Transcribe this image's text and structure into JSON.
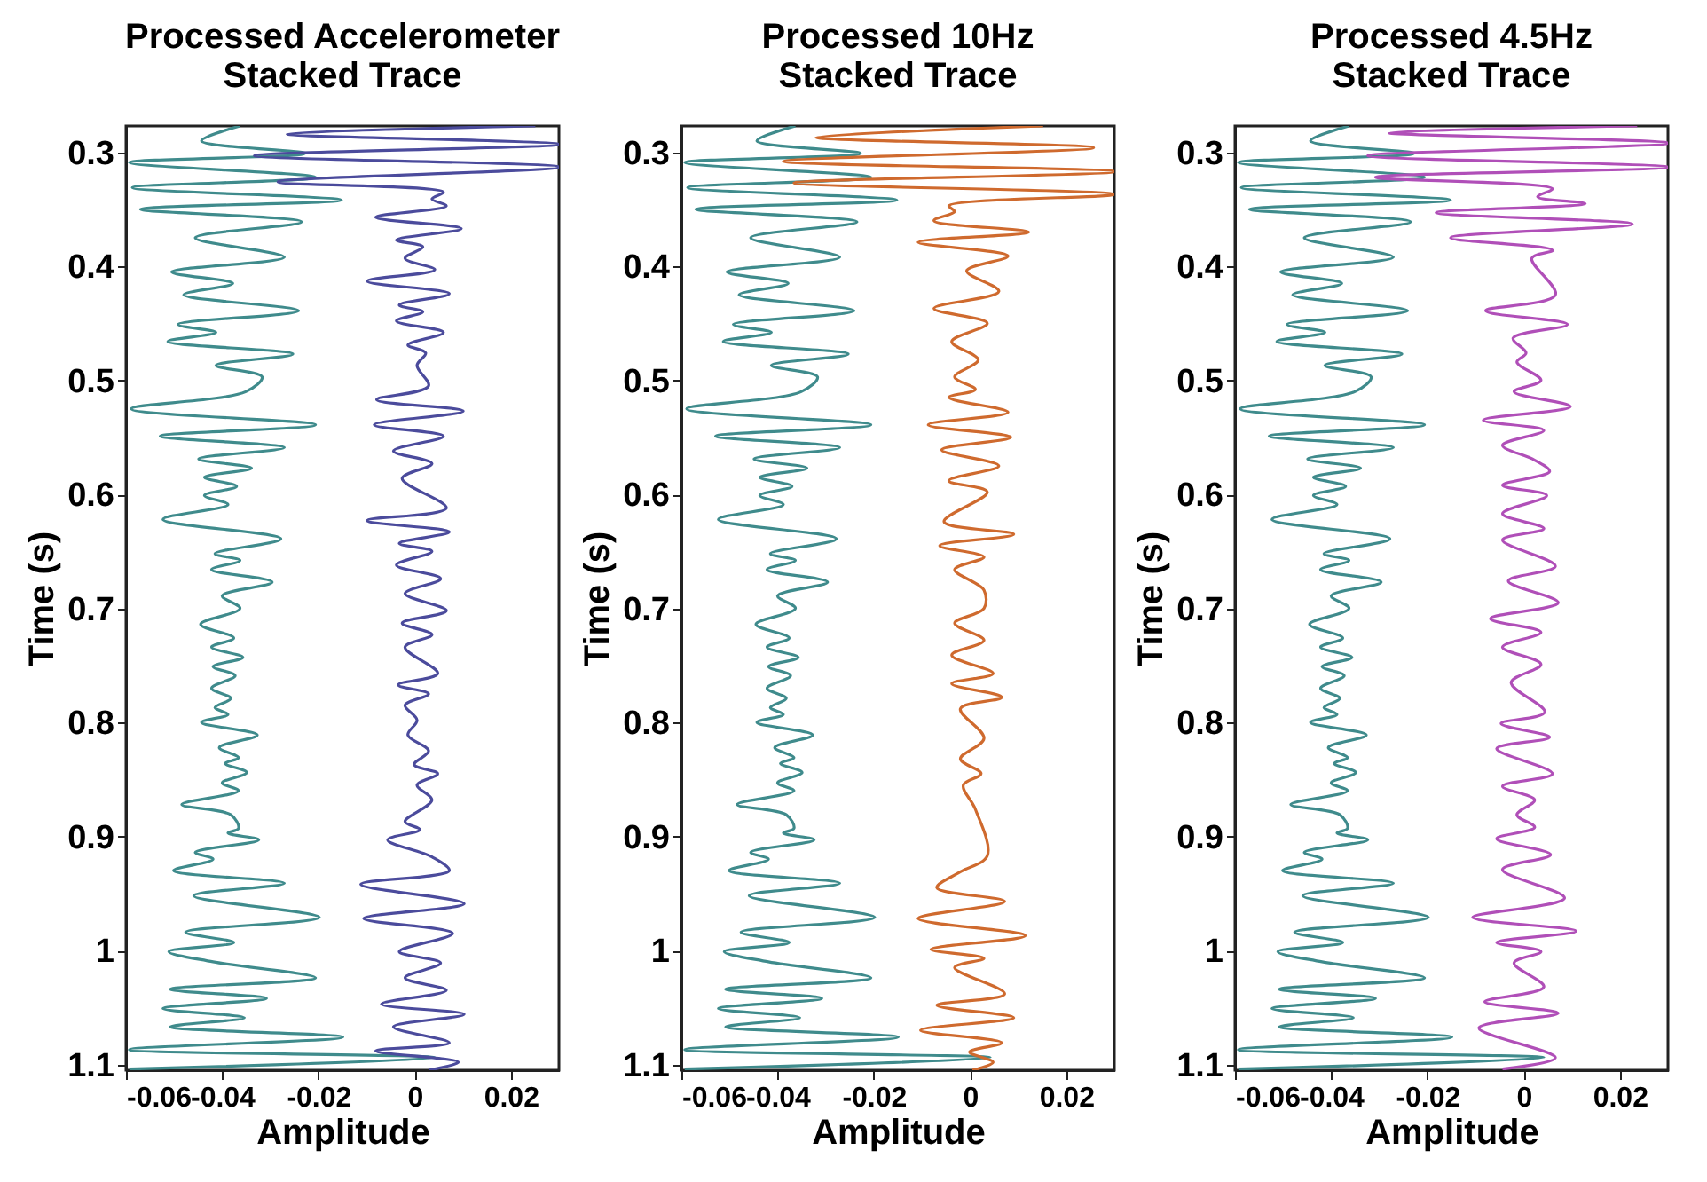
{
  "chart_data": [
    {
      "type": "line",
      "title": "Processed Accelerometer\nStacked Trace",
      "xlabel": "Amplitude",
      "ylabel": "Time (s)",
      "xlim": [
        -0.06,
        0.03
      ],
      "xticks": [
        -0.06,
        -0.04,
        -0.02,
        0,
        0.02
      ],
      "ylim": [
        1.105,
        0.277
      ],
      "yticks": [
        0.3,
        0.4,
        0.5,
        0.6,
        0.7,
        0.8,
        0.9,
        1,
        1.1
      ],
      "series": [
        {
          "color": "#3f8b8c",
          "x": [
            -0.0363,
            -0.0443,
            -0.0228,
            -0.0593,
            -0.0206,
            -0.0587,
            -0.0152,
            -0.057,
            -0.0235,
            -0.0456,
            -0.0271,
            -0.0505,
            -0.0378,
            -0.048,
            -0.0241,
            -0.0492,
            -0.0413,
            -0.0513,
            -0.0253,
            -0.0413,
            -0.0317,
            -0.0351,
            -0.0589,
            -0.0206,
            -0.0529,
            -0.0271,
            -0.0449,
            -0.0339,
            -0.0437,
            -0.037,
            -0.0437,
            -0.0388,
            -0.0523,
            -0.0278,
            -0.0415,
            -0.0363,
            -0.0422,
            -0.0296,
            -0.04,
            -0.0363,
            -0.0445,
            -0.0376,
            -0.0422,
            -0.0357,
            -0.0419,
            -0.0373,
            -0.0422,
            -0.0382,
            -0.0415,
            -0.0388,
            -0.0443,
            -0.0327,
            -0.0406,
            -0.0366,
            -0.0394,
            -0.0349,
            -0.04,
            -0.0366,
            -0.0484,
            -0.0382,
            -0.0366,
            -0.0388,
            -0.0324,
            -0.0456,
            -0.0419,
            -0.0501,
            -0.0271,
            -0.0459,
            -0.0198,
            -0.0476,
            -0.0376,
            -0.0511,
            -0.0419,
            -0.0206,
            -0.0508,
            -0.0308,
            -0.0523,
            -0.0354,
            -0.0508,
            -0.0149,
            -0.0593,
            0.0042,
            -0.0593
          ],
          "values": [
            0.277,
            0.29,
            0.301,
            0.309,
            0.322,
            0.331,
            0.342,
            0.35,
            0.361,
            0.375,
            0.392,
            0.405,
            0.415,
            0.425,
            0.439,
            0.451,
            0.458,
            0.466,
            0.477,
            0.487,
            0.497,
            0.51,
            0.525,
            0.539,
            0.549,
            0.559,
            0.569,
            0.577,
            0.585,
            0.593,
            0.601,
            0.609,
            0.622,
            0.639,
            0.652,
            0.658,
            0.666,
            0.677,
            0.689,
            0.7,
            0.714,
            0.726,
            0.734,
            0.743,
            0.751,
            0.759,
            0.77,
            0.779,
            0.787,
            0.793,
            0.8,
            0.811,
            0.822,
            0.831,
            0.836,
            0.844,
            0.853,
            0.86,
            0.872,
            0.881,
            0.893,
            0.897,
            0.903,
            0.914,
            0.92,
            0.93,
            0.941,
            0.952,
            0.971,
            0.984,
            0.993,
            1.001,
            1.01,
            1.024,
            1.034,
            1.042,
            1.051,
            1.059,
            1.067,
            1.076,
            1.087,
            1.094,
            1.104
          ]
        },
        {
          "color": "#4b4b9c",
          "x": [
            0.0251,
            -0.0265,
            0.03,
            -0.0333,
            0.03,
            -0.0284,
            0.006,
            0.0036,
            0.0066,
            -0.0081,
            0.0097,
            -0.0038,
            0.0017,
            -0.002,
            0.0042,
            -0.0099,
            0.0072,
            -0.0032,
            0.0017,
            -0.0038,
            0.006,
            -0.0014,
            0.0023,
            0.0005,
            0.0029,
            -0.0079,
            0.0101,
            -0.0084,
            0.006,
            -0.0044,
            0.0036,
            -0.0026,
            0.0066,
            -0.0099,
            0.0072,
            -0.0032,
            0.0036,
            -0.0038,
            0.0054,
            -0.002,
            0.0066,
            -0.0026,
            0.0036,
            -0.002,
            0.0048,
            -0.0034,
            0.0029,
            -0.002,
            0.0005,
            -0.0014,
            0.0029,
            -0.0001,
            0.0048,
            0.0005,
            0.0036,
            -0.002,
            0.0011,
            -0.0056,
            0.0036,
            0.0072,
            -0.0112,
            0.0103,
            -0.0106,
            0.0079,
            -0.0032,
            0.0054,
            -0.002,
            0.0066,
            -0.0069,
            0.0103,
            -0.0044,
            0.0072,
            -0.0081,
            0.0091,
            0.0029
          ],
          "values": [
            0.277,
            0.284,
            0.293,
            0.303,
            0.313,
            0.326,
            0.335,
            0.341,
            0.347,
            0.357,
            0.367,
            0.377,
            0.383,
            0.393,
            0.403,
            0.413,
            0.424,
            0.434,
            0.44,
            0.448,
            0.458,
            0.469,
            0.476,
            0.487,
            0.505,
            0.517,
            0.527,
            0.539,
            0.549,
            0.562,
            0.573,
            0.586,
            0.612,
            0.623,
            0.633,
            0.643,
            0.65,
            0.662,
            0.674,
            0.687,
            0.702,
            0.713,
            0.723,
            0.734,
            0.757,
            0.767,
            0.775,
            0.785,
            0.798,
            0.811,
            0.825,
            0.837,
            0.845,
            0.855,
            0.868,
            0.887,
            0.894,
            0.903,
            0.918,
            0.93,
            0.942,
            0.959,
            0.972,
            0.985,
            1.001,
            1.011,
            1.024,
            1.035,
            1.047,
            1.056,
            1.067,
            1.081,
            1.088,
            1.098,
            1.105
          ]
        }
      ]
    },
    {
      "type": "line",
      "title": "Processed 10Hz\nStacked Trace",
      "xlabel": "Amplitude",
      "ylabel": "Time (s)",
      "xlim": [
        -0.06,
        0.03
      ],
      "xticks": [
        -0.06,
        -0.04,
        -0.02,
        0,
        0.02
      ],
      "ylim": [
        1.105,
        0.277
      ],
      "yticks": [
        0.3,
        0.4,
        0.5,
        0.6,
        0.7,
        0.8,
        0.9,
        1,
        1.1
      ],
      "series": [
        {
          "color": "#3f8b8c",
          "x": [
            -0.0363,
            -0.0443,
            -0.0228,
            -0.0593,
            -0.0206,
            -0.0587,
            -0.0152,
            -0.057,
            -0.0235,
            -0.0456,
            -0.0271,
            -0.0505,
            -0.0378,
            -0.048,
            -0.0241,
            -0.0492,
            -0.0413,
            -0.0513,
            -0.0253,
            -0.0413,
            -0.0317,
            -0.0351,
            -0.0589,
            -0.0206,
            -0.0529,
            -0.0271,
            -0.0449,
            -0.0339,
            -0.0437,
            -0.037,
            -0.0437,
            -0.0388,
            -0.0523,
            -0.0278,
            -0.0415,
            -0.0363,
            -0.0422,
            -0.0296,
            -0.04,
            -0.0363,
            -0.0445,
            -0.0376,
            -0.0422,
            -0.0357,
            -0.0419,
            -0.0373,
            -0.0422,
            -0.0382,
            -0.0415,
            -0.0388,
            -0.0443,
            -0.0327,
            -0.0406,
            -0.0366,
            -0.0394,
            -0.0349,
            -0.04,
            -0.0366,
            -0.0484,
            -0.0382,
            -0.0366,
            -0.0388,
            -0.0324,
            -0.0456,
            -0.0419,
            -0.0501,
            -0.0271,
            -0.0459,
            -0.0198,
            -0.0476,
            -0.0376,
            -0.0511,
            -0.0419,
            -0.0206,
            -0.0508,
            -0.0308,
            -0.0523,
            -0.0354,
            -0.0508,
            -0.0149,
            -0.0593,
            0.0042,
            -0.0593
          ],
          "values": [
            0.277,
            0.29,
            0.301,
            0.309,
            0.322,
            0.331,
            0.342,
            0.35,
            0.361,
            0.375,
            0.392,
            0.405,
            0.415,
            0.425,
            0.439,
            0.451,
            0.458,
            0.466,
            0.477,
            0.487,
            0.497,
            0.51,
            0.525,
            0.539,
            0.549,
            0.559,
            0.569,
            0.577,
            0.585,
            0.593,
            0.601,
            0.609,
            0.622,
            0.639,
            0.652,
            0.658,
            0.666,
            0.677,
            0.689,
            0.7,
            0.714,
            0.726,
            0.734,
            0.743,
            0.751,
            0.759,
            0.77,
            0.779,
            0.787,
            0.793,
            0.8,
            0.811,
            0.822,
            0.831,
            0.836,
            0.844,
            0.853,
            0.86,
            0.872,
            0.881,
            0.893,
            0.897,
            0.903,
            0.914,
            0.92,
            0.93,
            0.941,
            0.952,
            0.971,
            0.984,
            0.993,
            1.001,
            1.01,
            1.024,
            1.034,
            1.042,
            1.051,
            1.059,
            1.067,
            1.076,
            1.087,
            1.094,
            1.104
          ]
        },
        {
          "color": "#cf6a2e",
          "x": [
            0.0152,
            -0.032,
            0.0257,
            -0.0388,
            0.03,
            -0.0366,
            0.03,
            -0.0044,
            -0.0032,
            -0.0075,
            0.0122,
            -0.0108,
            0.0079,
            -0.0007,
            0.006,
            -0.0075,
            0.0036,
            -0.0038,
            0.0017,
            -0.0032,
            0.0011,
            -0.0044,
            0.0079,
            -0.0087,
            0.0085,
            -0.0059,
            0.006,
            -0.0044,
            0.0036,
            -0.0054,
            0.0091,
            -0.0063,
            0.0029,
            -0.0032,
            0.0029,
            0.0029,
            -0.0032,
            0.0029,
            -0.0038,
            0.0048,
            -0.0038,
            0.0066,
            -0.002,
            0.0029,
            -0.002,
            0.0023,
            -0.0014,
            0.0011,
            0.0036,
            -0.002,
            -0.0069,
            0.0072,
            -0.0108,
            0.0115,
            -0.0081,
            0.0029,
            -0.0032,
            0.0072,
            -0.0069,
            0.0091,
            -0.0103,
            0.0066,
            -0.0001,
            0.0048,
            0.0005
          ],
          "values": [
            0.277,
            0.287,
            0.296,
            0.308,
            0.317,
            0.327,
            0.337,
            0.347,
            0.352,
            0.36,
            0.37,
            0.379,
            0.391,
            0.404,
            0.422,
            0.437,
            0.45,
            0.466,
            0.482,
            0.497,
            0.508,
            0.515,
            0.528,
            0.539,
            0.55,
            0.561,
            0.575,
            0.588,
            0.598,
            0.624,
            0.635,
            0.645,
            0.655,
            0.666,
            0.684,
            0.7,
            0.713,
            0.728,
            0.741,
            0.757,
            0.766,
            0.778,
            0.788,
            0.814,
            0.832,
            0.845,
            0.855,
            0.876,
            0.917,
            0.931,
            0.945,
            0.957,
            0.972,
            0.987,
            0.999,
            1.007,
            1.015,
            1.038,
            1.048,
            1.059,
            1.07,
            1.081,
            1.089,
            1.098,
            1.105
          ]
        }
      ]
    },
    {
      "type": "line",
      "title": "Processed 4.5Hz\nStacked Trace",
      "xlabel": "Amplitude",
      "ylabel": "Time (s)",
      "xlim": [
        -0.06,
        0.03
      ],
      "xticks": [
        -0.06,
        -0.04,
        -0.02,
        0,
        0.02
      ],
      "ylim": [
        1.105,
        0.277
      ],
      "yticks": [
        0.3,
        0.4,
        0.5,
        0.6,
        0.7,
        0.8,
        0.9,
        1,
        1.1
      ],
      "series": [
        {
          "color": "#3f8b8c",
          "x": [
            -0.0363,
            -0.0443,
            -0.0228,
            -0.0593,
            -0.0206,
            -0.0587,
            -0.0152,
            -0.057,
            -0.0235,
            -0.0456,
            -0.0271,
            -0.0505,
            -0.0378,
            -0.048,
            -0.0241,
            -0.0492,
            -0.0413,
            -0.0513,
            -0.0253,
            -0.0413,
            -0.0317,
            -0.0351,
            -0.0589,
            -0.0206,
            -0.0529,
            -0.0271,
            -0.0449,
            -0.0339,
            -0.0437,
            -0.037,
            -0.0437,
            -0.0388,
            -0.0523,
            -0.0278,
            -0.0415,
            -0.0363,
            -0.0422,
            -0.0296,
            -0.04,
            -0.0363,
            -0.0445,
            -0.0376,
            -0.0422,
            -0.0357,
            -0.0419,
            -0.0373,
            -0.0422,
            -0.0382,
            -0.0415,
            -0.0388,
            -0.0443,
            -0.0327,
            -0.0406,
            -0.0366,
            -0.0394,
            -0.0349,
            -0.04,
            -0.0366,
            -0.0484,
            -0.0382,
            -0.0366,
            -0.0388,
            -0.0324,
            -0.0456,
            -0.0419,
            -0.0501,
            -0.0271,
            -0.0459,
            -0.0198,
            -0.0476,
            -0.0376,
            -0.0511,
            -0.0419,
            -0.0206,
            -0.0508,
            -0.0308,
            -0.0523,
            -0.0354,
            -0.0508,
            -0.0149,
            -0.0593,
            0.0042,
            -0.0593
          ],
          "values": [
            0.277,
            0.29,
            0.301,
            0.309,
            0.322,
            0.331,
            0.342,
            0.35,
            0.361,
            0.375,
            0.392,
            0.405,
            0.415,
            0.425,
            0.439,
            0.451,
            0.458,
            0.466,
            0.477,
            0.487,
            0.497,
            0.51,
            0.525,
            0.539,
            0.549,
            0.559,
            0.569,
            0.577,
            0.585,
            0.593,
            0.601,
            0.609,
            0.622,
            0.639,
            0.652,
            0.658,
            0.666,
            0.677,
            0.689,
            0.7,
            0.714,
            0.726,
            0.734,
            0.743,
            0.751,
            0.759,
            0.77,
            0.779,
            0.787,
            0.793,
            0.8,
            0.811,
            0.822,
            0.831,
            0.836,
            0.844,
            0.853,
            0.86,
            0.872,
            0.881,
            0.893,
            0.897,
            0.903,
            0.914,
            0.92,
            0.93,
            0.941,
            0.952,
            0.971,
            0.984,
            0.993,
            1.001,
            1.01,
            1.024,
            1.034,
            1.042,
            1.051,
            1.059,
            1.067,
            1.076,
            1.087,
            1.094,
            1.104
          ]
        },
        {
          "color": "#b04fb8",
          "x": [
            0.0236,
            -0.028,
            0.03,
            -0.0324,
            0.03,
            -0.0308,
            0.006,
            0.0029,
            0.0128,
            -0.0182,
            0.0226,
            -0.0152,
            0.006,
            0.0017,
            0.0066,
            -0.0079,
            0.0091,
            -0.0022,
            0.0005,
            -0.0014,
            0.0036,
            -0.002,
            0.0097,
            -0.0084,
            0.0042,
            -0.0044,
            0.0023,
            0.0054,
            -0.0044,
            0.0048,
            -0.0044,
            0.0042,
            -0.0044,
            0.0066,
            -0.0032,
            0.0072,
            -0.0069,
            0.0036,
            -0.0044,
            0.0036,
            -0.0026,
            0.0044,
            -0.0047,
            0.0054,
            -0.0056,
            0.006,
            -0.0044,
            0.0023,
            -0.0014,
            0.0023,
            -0.0056,
            0.0056,
            -0.0044,
            0.0085,
            -0.0106,
            0.0109,
            -0.0056,
            0.0036,
            -0.002,
            0.0042,
            -0.0081,
            0.0072,
            -0.0093,
            0.0066,
            -0.0044
          ],
          "values": [
            0.277,
            0.283,
            0.292,
            0.303,
            0.313,
            0.322,
            0.332,
            0.339,
            0.345,
            0.353,
            0.363,
            0.375,
            0.386,
            0.393,
            0.425,
            0.439,
            0.451,
            0.463,
            0.476,
            0.484,
            0.5,
            0.51,
            0.523,
            0.535,
            0.544,
            0.557,
            0.57,
            0.58,
            0.592,
            0.601,
            0.617,
            0.63,
            0.64,
            0.663,
            0.676,
            0.695,
            0.709,
            0.721,
            0.734,
            0.749,
            0.765,
            0.791,
            0.801,
            0.813,
            0.823,
            0.845,
            0.856,
            0.868,
            0.881,
            0.892,
            0.902,
            0.916,
            0.929,
            0.954,
            0.971,
            0.983,
            0.993,
            1.001,
            1.011,
            1.032,
            1.045,
            1.055,
            1.068,
            1.094,
            1.104
          ]
        }
      ]
    }
  ]
}
